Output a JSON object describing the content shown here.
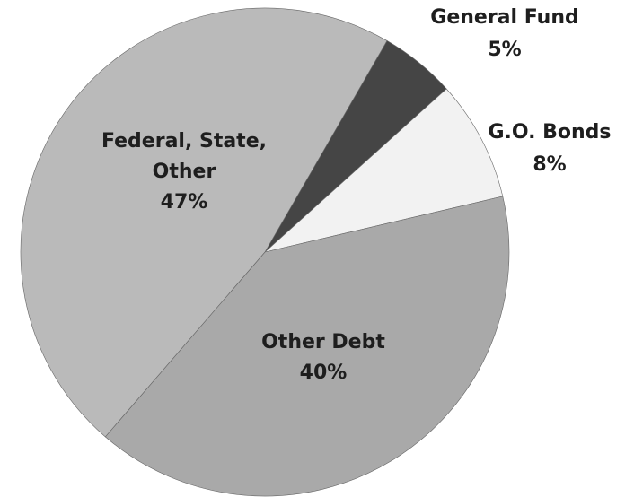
{
  "chart_data": {
    "type": "pie",
    "categories": [
      "General Fund",
      "G.O. Bonds",
      "Other Debt",
      "Federal, State, Other"
    ],
    "values": [
      5,
      8,
      40,
      47
    ],
    "value_labels": [
      "5%",
      "8%",
      "40%",
      "47%"
    ],
    "colors": [
      "#454545",
      "#f2f2f2",
      "#a9a9a9",
      "#bababa"
    ]
  }
}
